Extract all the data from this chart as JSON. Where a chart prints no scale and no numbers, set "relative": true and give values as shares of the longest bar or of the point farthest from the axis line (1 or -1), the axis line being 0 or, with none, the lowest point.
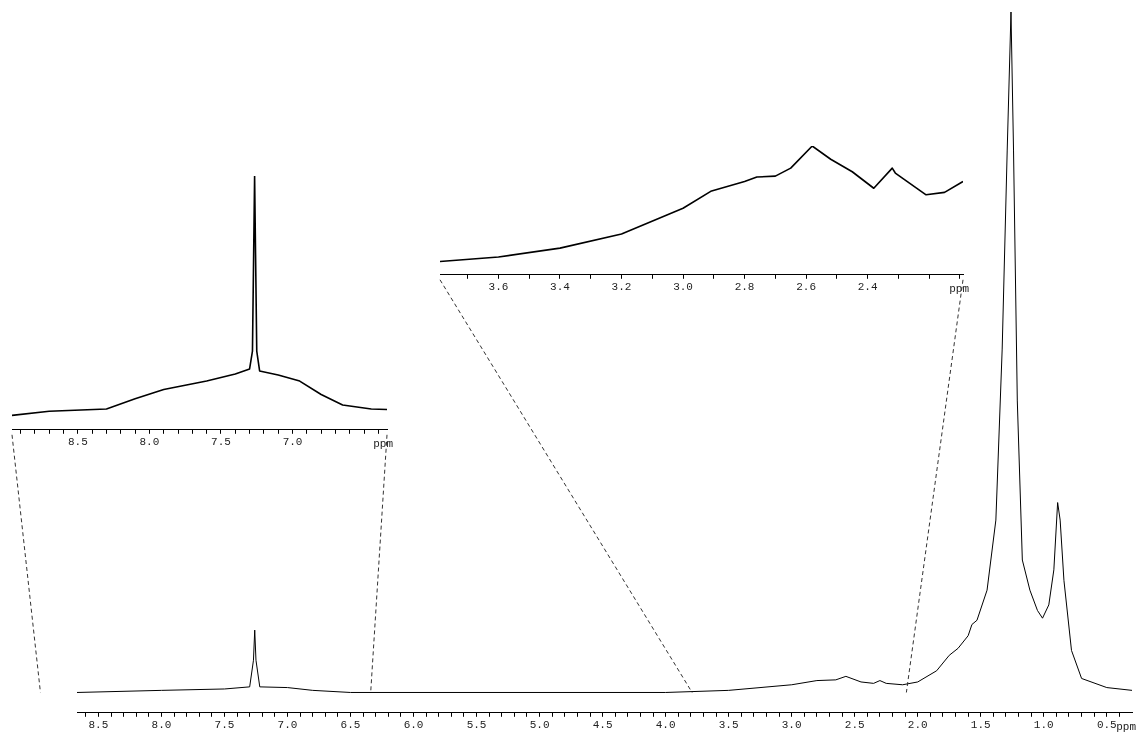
{
  "chart_data": [
    {
      "type": "line",
      "relative": true,
      "color": "#000000",
      "xlabel": "ppm",
      "tick_labels": "x",
      "xlim": [
        8.67,
        0.3
      ],
      "xticks": [
        {
          "value": 8.6,
          "label": null
        },
        8.5,
        {
          "value": 8.4,
          "label": null
        },
        {
          "value": 8.3,
          "label": null
        },
        {
          "value": 8.2,
          "label": null
        },
        {
          "value": 8.1,
          "label": null
        },
        {
          "value": 8,
          "label": "8.0"
        },
        {
          "value": 7.9,
          "label": null
        },
        {
          "value": 7.8,
          "label": null
        },
        {
          "value": 7.7,
          "label": null
        },
        {
          "value": 7.6,
          "label": null
        },
        7.5,
        {
          "value": 7.4,
          "label": null
        },
        {
          "value": 7.3,
          "label": null
        },
        {
          "value": 7.2,
          "label": null
        },
        {
          "value": 7.1,
          "label": null
        },
        {
          "value": 7,
          "label": "7.0"
        },
        {
          "value": 6.9,
          "label": null
        },
        {
          "value": 6.8,
          "label": null
        },
        {
          "value": 6.7,
          "label": null
        },
        {
          "value": 6.6,
          "label": null
        },
        6.5,
        {
          "value": 6.4,
          "label": null
        },
        {
          "value": 6.3,
          "label": null
        },
        {
          "value": 6.2,
          "label": null
        },
        {
          "value": 6.1,
          "label": null
        },
        {
          "value": 6,
          "label": "6.0"
        },
        {
          "value": 5.9,
          "label": null
        },
        {
          "value": 5.8,
          "label": null
        },
        {
          "value": 5.7,
          "label": null
        },
        {
          "value": 5.6,
          "label": null
        },
        5.5,
        {
          "value": 5.4,
          "label": null
        },
        {
          "value": 5.3,
          "label": null
        },
        {
          "value": 5.2,
          "label": null
        },
        {
          "value": 5.1,
          "label": null
        },
        {
          "value": 5,
          "label": "5.0"
        },
        {
          "value": 4.9,
          "label": null
        },
        {
          "value": 4.8,
          "label": null
        },
        {
          "value": 4.7,
          "label": null
        },
        {
          "value": 4.6,
          "label": null
        },
        4.5,
        {
          "value": 4.4,
          "label": null
        },
        {
          "value": 4.3,
          "label": null
        },
        {
          "value": 4.2,
          "label": null
        },
        {
          "value": 4.1,
          "label": null
        },
        {
          "value": 4,
          "label": "4.0"
        },
        {
          "value": 3.9,
          "label": null
        },
        {
          "value": 3.8,
          "label": null
        },
        {
          "value": 3.7,
          "label": null
        },
        {
          "value": 3.6,
          "label": null
        },
        3.5,
        {
          "value": 3.4,
          "label": null
        },
        {
          "value": 3.3,
          "label": null
        },
        {
          "value": 3.2,
          "label": null
        },
        {
          "value": 3.1,
          "label": null
        },
        {
          "value": 3,
          "label": "3.0"
        },
        {
          "value": 2.9,
          "label": null
        },
        {
          "value": 2.8,
          "label": null
        },
        {
          "value": 2.7,
          "label": null
        },
        {
          "value": 2.6,
          "label": null
        },
        2.5,
        {
          "value": 2.4,
          "label": null
        },
        {
          "value": 2.3,
          "label": null
        },
        {
          "value": 2.2,
          "label": null
        },
        {
          "value": 2.1,
          "label": null
        },
        {
          "value": 2,
          "label": "2.0"
        },
        {
          "value": 1.9,
          "label": null
        },
        {
          "value": 1.8,
          "label": null
        },
        {
          "value": 1.7,
          "label": null
        },
        {
          "value": 1.6,
          "label": null
        },
        1.5,
        {
          "value": 1.4,
          "label": null
        },
        {
          "value": 1.3,
          "label": null
        },
        {
          "value": 1.2,
          "label": null
        },
        {
          "value": 1.1,
          "label": null
        },
        {
          "value": 1,
          "label": "1.0"
        },
        {
          "value": 0.9,
          "label": null
        },
        {
          "value": 0.8,
          "label": null
        },
        {
          "value": 0.7,
          "label": null
        },
        {
          "value": 0.6,
          "label": null
        },
        0.5,
        {
          "value": 0.4,
          "label": null
        }
      ],
      "x": [
        8.67,
        8.0,
        7.5,
        7.3,
        7.27,
        7.26,
        7.25,
        7.22,
        7.0,
        6.8,
        6.5,
        4.0,
        3.5,
        3.0,
        2.8,
        2.65,
        2.57,
        2.45,
        2.35,
        2.3,
        2.25,
        2.12,
        2.0,
        1.85,
        1.75,
        1.68,
        1.6,
        1.57,
        1.53,
        1.45,
        1.38,
        1.33,
        1.29,
        1.26,
        1.24,
        1.21,
        1.17,
        1.11,
        1.05,
        1.01,
        0.96,
        0.92,
        0.89,
        0.87,
        0.84,
        0.78,
        0.7,
        0.5,
        0.3
      ],
      "values": [
        0.029,
        0.032,
        0.034,
        0.037,
        0.075,
        0.118,
        0.075,
        0.037,
        0.036,
        0.032,
        0.029,
        0.029,
        0.032,
        0.04,
        0.046,
        0.047,
        0.052,
        0.044,
        0.042,
        0.046,
        0.042,
        0.04,
        0.044,
        0.06,
        0.082,
        0.092,
        0.11,
        0.126,
        0.132,
        0.175,
        0.275,
        0.519,
        0.803,
        1,
        0.803,
        0.445,
        0.218,
        0.175,
        0.146,
        0.135,
        0.154,
        0.204,
        0.3,
        0.275,
        0.189,
        0.089,
        0.049,
        0.036,
        0.032
      ]
    },
    {
      "type": "line",
      "relative": true,
      "color": "#000000",
      "xlabel": "ppm",
      "tick_labels": "x",
      "xlim": [
        8.96,
        6.34
      ],
      "xticks": [
        {
          "value": 8.9,
          "label": null
        },
        {
          "value": 8.8,
          "label": null
        },
        {
          "value": 8.7,
          "label": null
        },
        {
          "value": 8.6,
          "label": null
        },
        8.5,
        {
          "value": 8.4,
          "label": null
        },
        {
          "value": 8.3,
          "label": null
        },
        {
          "value": 8.2,
          "label": null
        },
        {
          "value": 8.1,
          "label": null
        },
        {
          "value": 8,
          "label": "8.0"
        },
        {
          "value": 7.9,
          "label": null
        },
        {
          "value": 7.8,
          "label": null
        },
        {
          "value": 7.7,
          "label": null
        },
        {
          "value": 7.6,
          "label": null
        },
        7.5,
        {
          "value": 7.4,
          "label": null
        },
        {
          "value": 7.3,
          "label": null
        },
        {
          "value": 7.2,
          "label": null
        },
        {
          "value": 7.1,
          "label": null
        },
        {
          "value": 7,
          "label": "7.0"
        },
        {
          "value": 6.9,
          "label": null
        },
        {
          "value": 6.8,
          "label": null
        },
        {
          "value": 6.7,
          "label": null
        },
        {
          "value": 6.6,
          "label": null
        },
        {
          "value": 6.5,
          "label": null
        },
        {
          "value": 6.4,
          "label": null
        }
      ],
      "x": [
        8.96,
        8.7,
        8.3,
        8.1,
        7.9,
        7.6,
        7.4,
        7.3,
        7.28,
        7.265,
        7.25,
        7.23,
        7.1,
        6.95,
        6.8,
        6.65,
        6.45,
        6.34
      ],
      "values": [
        0.057,
        0.073,
        0.082,
        0.122,
        0.159,
        0.192,
        0.22,
        0.24,
        0.31,
        1,
        0.31,
        0.232,
        0.216,
        0.192,
        0.139,
        0.098,
        0.082,
        0.08
      ]
    },
    {
      "type": "line",
      "relative": true,
      "color": "#000000",
      "xlabel": "ppm",
      "tick_labels": "x",
      "xlim": [
        3.79,
        2.09
      ],
      "xticks": [
        {
          "value": 3.7,
          "label": null
        },
        3.6,
        {
          "value": 3.5,
          "label": null
        },
        3.4,
        {
          "value": 3.3,
          "label": null
        },
        3.2,
        {
          "value": 3.1,
          "label": null
        },
        {
          "value": 3,
          "label": "3.0"
        },
        {
          "value": 2.9,
          "label": null
        },
        2.8,
        {
          "value": 2.7,
          "label": null
        },
        2.6,
        {
          "value": 2.5,
          "label": null
        },
        2.4,
        {
          "value": 2.3,
          "label": null
        },
        {
          "value": 2.2,
          "label": null
        },
        {
          "value": 2.1,
          "label": null
        }
      ],
      "x": [
        3.79,
        3.6,
        3.4,
        3.2,
        3.0,
        2.91,
        2.8,
        2.76,
        2.7,
        2.65,
        2.58,
        2.52,
        2.45,
        2.38,
        2.32,
        2.31,
        2.21,
        2.15,
        2.09
      ],
      "values": [
        0.103,
        0.138,
        0.207,
        0.317,
        0.517,
        0.648,
        0.724,
        0.759,
        0.766,
        0.828,
        1,
        0.897,
        0.8,
        0.672,
        0.828,
        0.79,
        0.621,
        0.64,
        0.724
      ]
    }
  ]
}
